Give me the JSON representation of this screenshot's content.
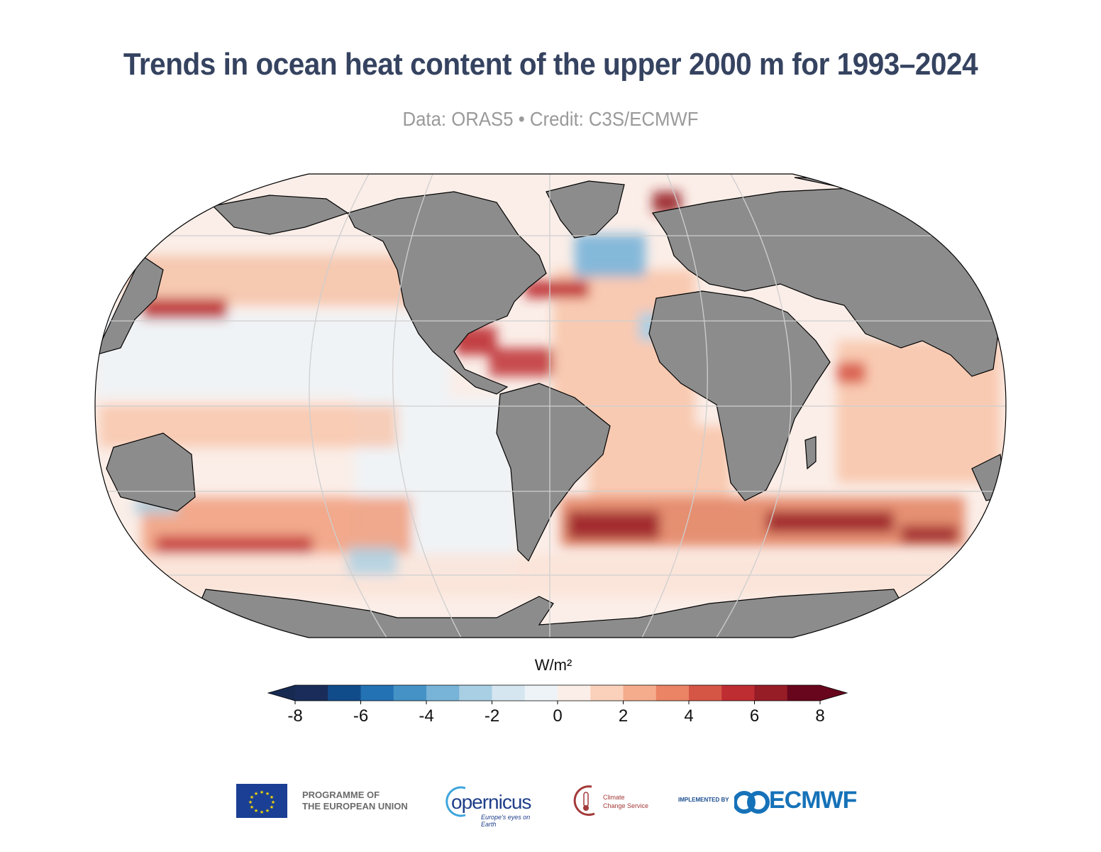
{
  "title": "Trends in ocean heat content of the upper 2000 m for 1993–2024",
  "subtitle": "Data: ORAS5 • Credit: C3S/ECMWF",
  "map": {
    "projection": "Robinson",
    "land_color": "#8c8c8c",
    "ocean_background": "#fbeee8",
    "grid": true
  },
  "colorbar": {
    "unit": "W/m²",
    "min": -8,
    "max": 8,
    "step": 1,
    "extend": "both",
    "ticks": [
      "-8",
      "-6",
      "-4",
      "-2",
      "0",
      "2",
      "4",
      "6",
      "8"
    ],
    "colors": [
      "#1a2d5a",
      "#114c8a",
      "#2372b4",
      "#4593c6",
      "#78b3d8",
      "#a9cfe4",
      "#d5e6f1",
      "#eef3f7",
      "#fbeee8",
      "#fbd1bb",
      "#f5ac8c",
      "#eb8365",
      "#d65646",
      "#bd2d31",
      "#961c26",
      "#67061d"
    ],
    "under_color": "#162a52",
    "over_color": "#67061d"
  },
  "logos": {
    "eu": "PROGRAMME OF\nTHE EUROPEAN UNION",
    "eu_line1": "PROGRAMME OF",
    "eu_line2": "THE EUROPEAN UNION",
    "copernicus": "opernicus",
    "copernicus_tag": "Europe's eyes on Earth",
    "c3s_line1": "Climate",
    "c3s_line2": "Change Service",
    "implemented_by": "IMPLEMENTED BY",
    "ecmwf": "ECMWF"
  }
}
